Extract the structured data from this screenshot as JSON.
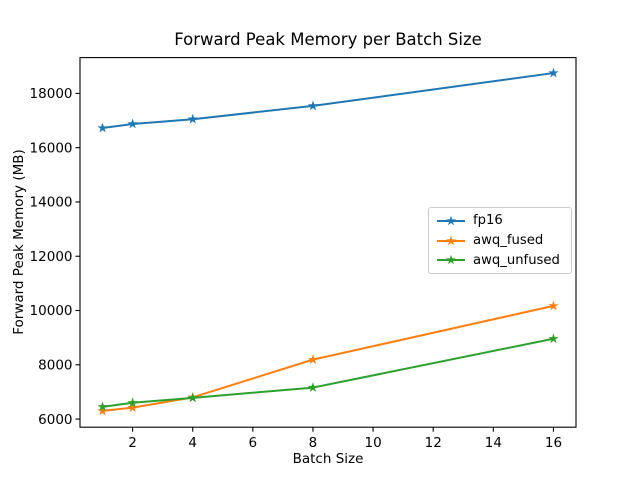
{
  "chart_data": {
    "type": "line",
    "title": "Forward Peak Memory per Batch Size",
    "xlabel": "Batch Size",
    "ylabel": "Forward Peak Memory (MB)",
    "x": [
      1,
      2,
      4,
      8,
      16
    ],
    "series": [
      {
        "name": "fp16",
        "color": "#1f77b4",
        "values": [
          16725,
          16875,
          17050,
          17540,
          18750
        ]
      },
      {
        "name": "awq_fused",
        "color": "#ff7f0e",
        "values": [
          6300,
          6420,
          6800,
          8190,
          10170
        ]
      },
      {
        "name": "awq_unfused",
        "color": "#2ca02c",
        "values": [
          6450,
          6600,
          6780,
          7160,
          8960
        ]
      }
    ],
    "marker": "star",
    "grid": false,
    "legend_position": "center right",
    "xticks": [
      2,
      4,
      6,
      8,
      10,
      12,
      14,
      16
    ],
    "yticks": [
      6000,
      8000,
      10000,
      12000,
      14000,
      16000,
      18000
    ],
    "xlim": [
      0.25,
      16.75
    ],
    "ylim": [
      5700,
      19320
    ],
    "axis_color": "#000000",
    "background_color": "#ffffff"
  }
}
